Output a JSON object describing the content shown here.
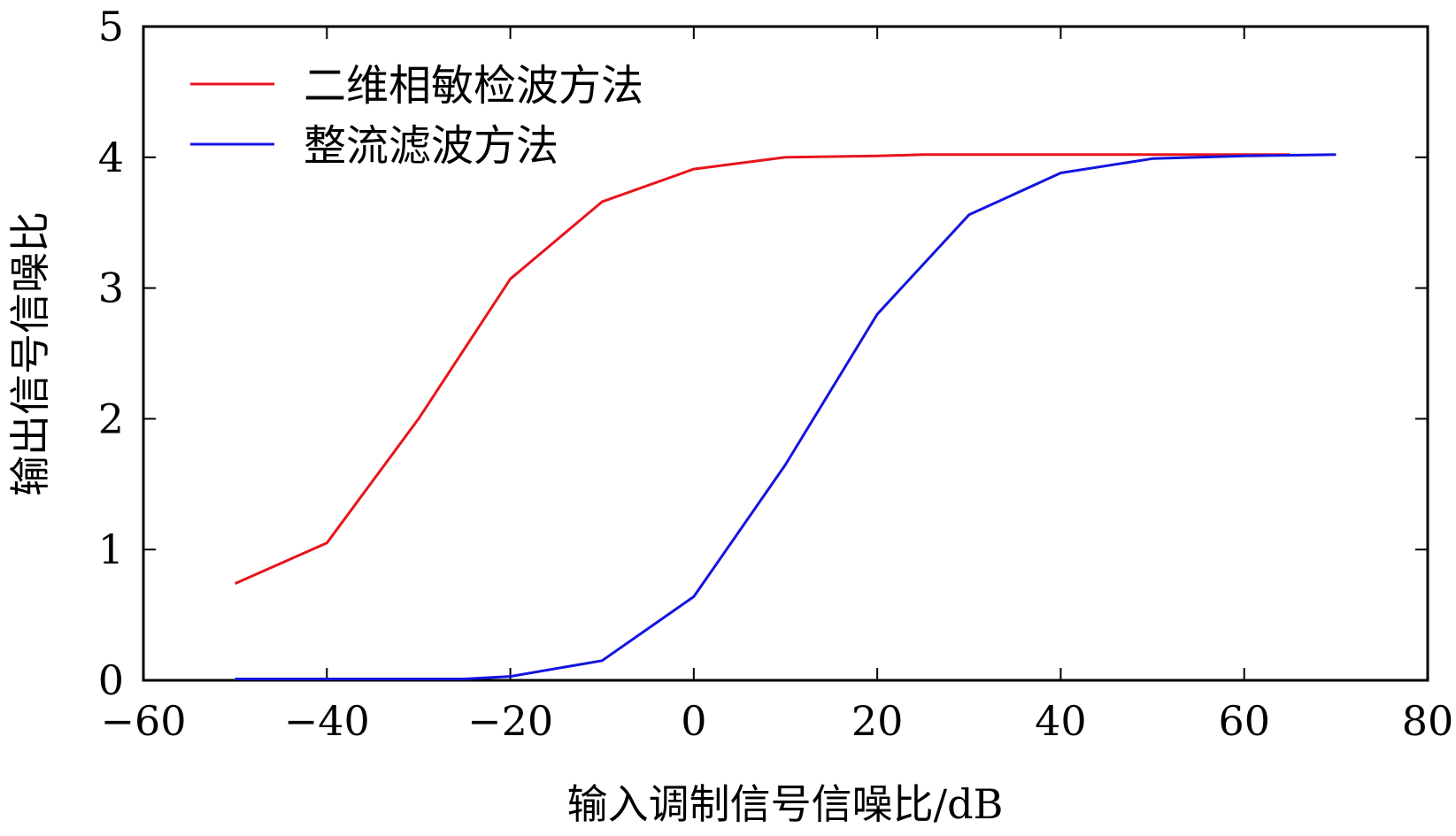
{
  "chart_data": {
    "type": "line",
    "xlabel": "输入调制信号信噪比/dB",
    "ylabel": "输出信号信噪比",
    "xlim": [
      -60,
      80
    ],
    "ylim": [
      0,
      5
    ],
    "xticks": [
      -60,
      -40,
      -20,
      0,
      20,
      40,
      60,
      80
    ],
    "yticks": [
      0,
      1,
      2,
      3,
      4,
      5
    ],
    "xtick_labels": [
      "−60",
      "−40",
      "−20",
      "0",
      "20",
      "40",
      "60",
      "80"
    ],
    "ytick_labels": [
      "0",
      "1",
      "2",
      "3",
      "4",
      "5"
    ],
    "grid": false,
    "legend_position": "top-left",
    "series": [
      {
        "name": "二维相敏检波方法",
        "color": "#e8141c",
        "x": [
          -50,
          -40,
          -30,
          -20,
          -10,
          0,
          10,
          20,
          25,
          30,
          40,
          50,
          60,
          65
        ],
        "y": [
          0.74,
          1.05,
          2.0,
          3.07,
          3.66,
          3.91,
          4.0,
          4.01,
          4.02,
          4.02,
          4.02,
          4.02,
          4.02,
          4.02
        ]
      },
      {
        "name": "整流滤波方法",
        "color": "#1414e0",
        "x": [
          -50,
          -40,
          -30,
          -25,
          -20,
          -10,
          0,
          10,
          20,
          30,
          40,
          50,
          60,
          70
        ],
        "y": [
          0.01,
          0.01,
          0.01,
          0.01,
          0.03,
          0.15,
          0.64,
          1.65,
          2.8,
          3.56,
          3.88,
          3.99,
          4.01,
          4.02
        ]
      }
    ]
  }
}
